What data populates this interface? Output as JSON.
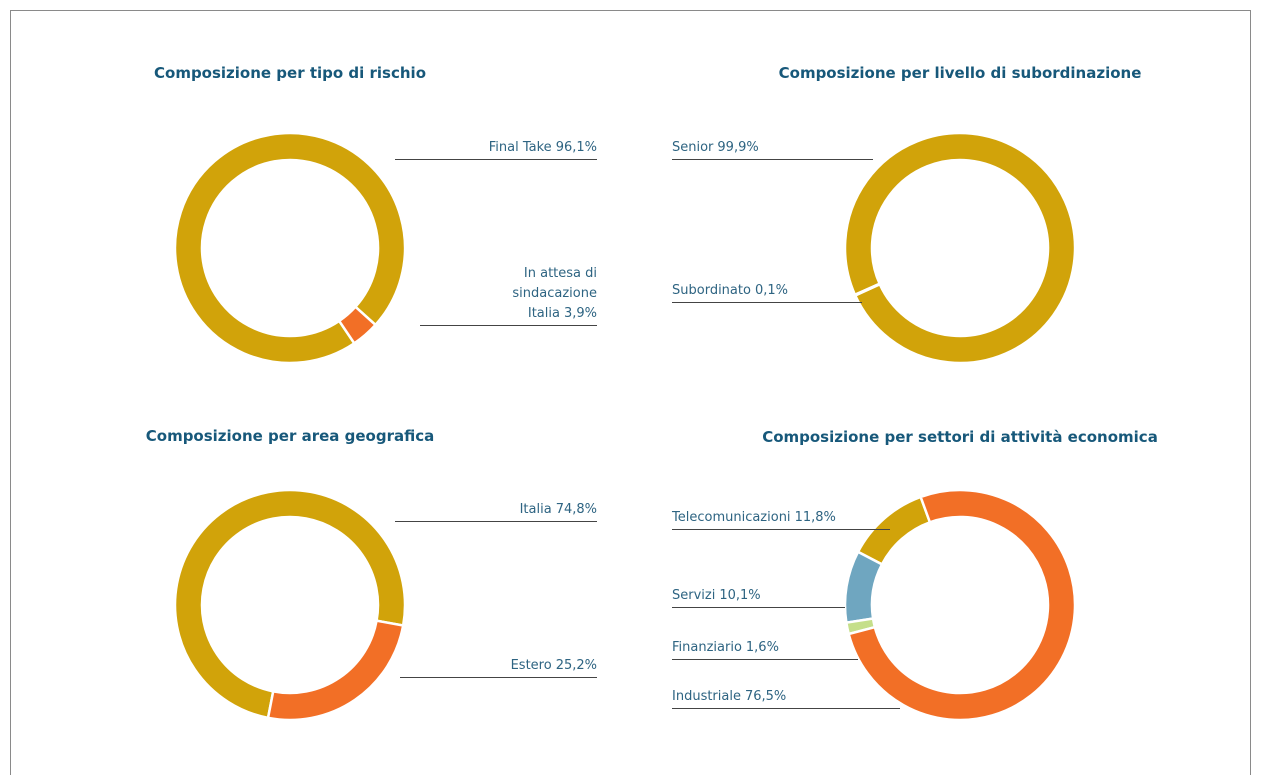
{
  "chart_data": [
    {
      "type": "pie",
      "title": "Composizione per tipo di rischio",
      "categories": [
        "Final Take",
        "In attesa di sindacazione Italia"
      ],
      "values": [
        96.1,
        3.9
      ],
      "value_labels": [
        "96,1%",
        "3,9%"
      ],
      "colors": [
        "#d1a30a",
        "#f26f26"
      ]
    },
    {
      "type": "pie",
      "title": "Composizione per livello di subordinazione",
      "categories": [
        "Senior",
        "Subordinato"
      ],
      "values": [
        99.9,
        0.1
      ],
      "value_labels": [
        "99,9%",
        "0,1%"
      ],
      "colors": [
        "#d1a30a",
        "#f26f26"
      ]
    },
    {
      "type": "pie",
      "title": "Composizione per area geografica",
      "categories": [
        "Italia",
        "Estero"
      ],
      "values": [
        74.8,
        25.2
      ],
      "value_labels": [
        "74,8%",
        "25,2%"
      ],
      "colors": [
        "#d1a30a",
        "#f26f26"
      ]
    },
    {
      "type": "pie",
      "title": "Composizione per settori di attività economica",
      "categories": [
        "Telecomunicazioni",
        "Servizi",
        "Finanziario",
        "Industriale"
      ],
      "values": [
        11.8,
        10.1,
        1.6,
        76.5
      ],
      "value_labels": [
        "11,8%",
        "10,1%",
        "1,6%",
        "76,5%"
      ],
      "colors": [
        "#d1a30a",
        "#6fa6c0",
        "#c5df8a",
        "#f26f26"
      ]
    }
  ]
}
